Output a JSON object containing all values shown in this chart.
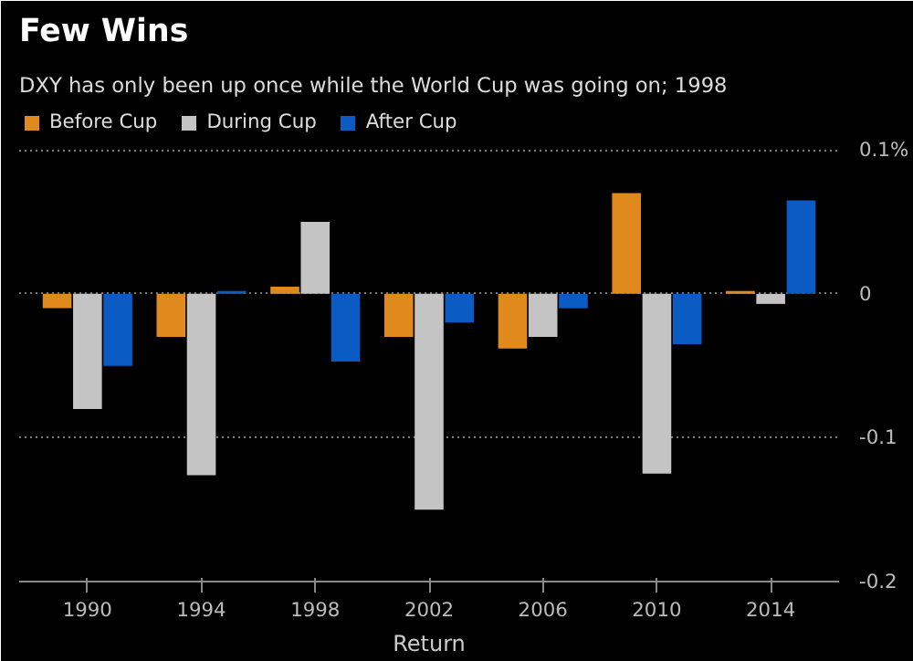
{
  "chart_data": {
    "type": "bar",
    "title": "Few Wins",
    "subtitle": "DXY has only been up once while the World Cup was going on; 1998",
    "xlabel": "Return",
    "categories": [
      "1990",
      "1994",
      "1998",
      "2002",
      "2006",
      "2010",
      "2014"
    ],
    "series": [
      {
        "name": "Before Cup",
        "color": "#e08a1e",
        "values": [
          -0.01,
          -0.03,
          0.005,
          -0.03,
          -0.038,
          0.07,
          0.002
        ]
      },
      {
        "name": "During Cup",
        "color": "#c4c4c4",
        "values": [
          -0.08,
          -0.126,
          0.05,
          -0.15,
          -0.03,
          -0.125,
          -0.007
        ]
      },
      {
        "name": "After Cup",
        "color": "#0a5bc4",
        "values": [
          -0.05,
          0.002,
          -0.047,
          -0.02,
          -0.01,
          -0.035,
          0.065
        ]
      }
    ],
    "ylim": [
      -0.2,
      0.13
    ],
    "yticks": [
      {
        "value": 0.1,
        "label": "0.1%"
      },
      0,
      -0.1,
      -0.2
    ],
    "grid": "y",
    "legend": "top left"
  }
}
